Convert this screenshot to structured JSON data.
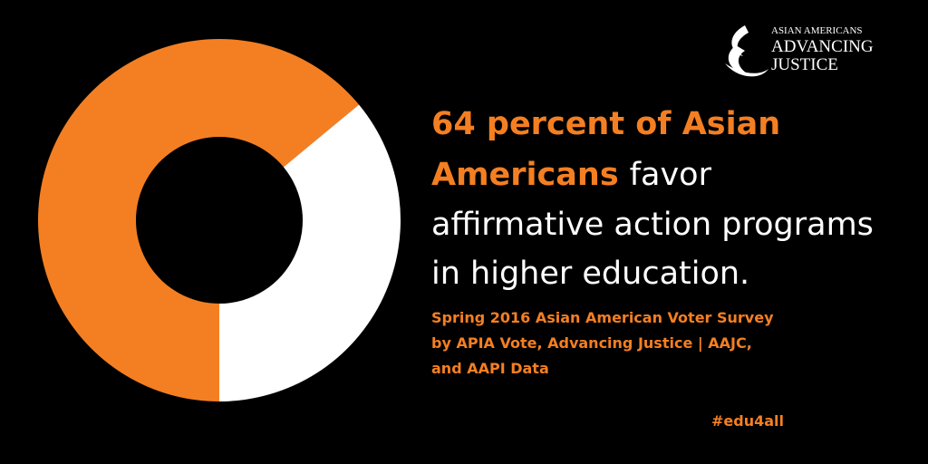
{
  "chart_data": {
    "type": "pie",
    "values": [
      64,
      36
    ],
    "colors": [
      "#f47f22",
      "#ffffff"
    ],
    "hole": 0.46,
    "start_angle": 180
  },
  "logo": {
    "line1": "ASIAN AMERICANS",
    "line2": "ADVANCING",
    "line3": "JUSTICE"
  },
  "headline": {
    "line1": "64 percent of Asian",
    "line2_highlight": "Americans",
    "line2_rest": "favor",
    "line3": "affirmative action programs",
    "line4": "in higher education."
  },
  "source": {
    "line1": "Spring 2016 Asian American Voter Survey",
    "line2": "by APIA Vote, Advancing Justice | AAJC,",
    "line3": "and AAPI Data"
  },
  "hashtag": "#edu4all"
}
